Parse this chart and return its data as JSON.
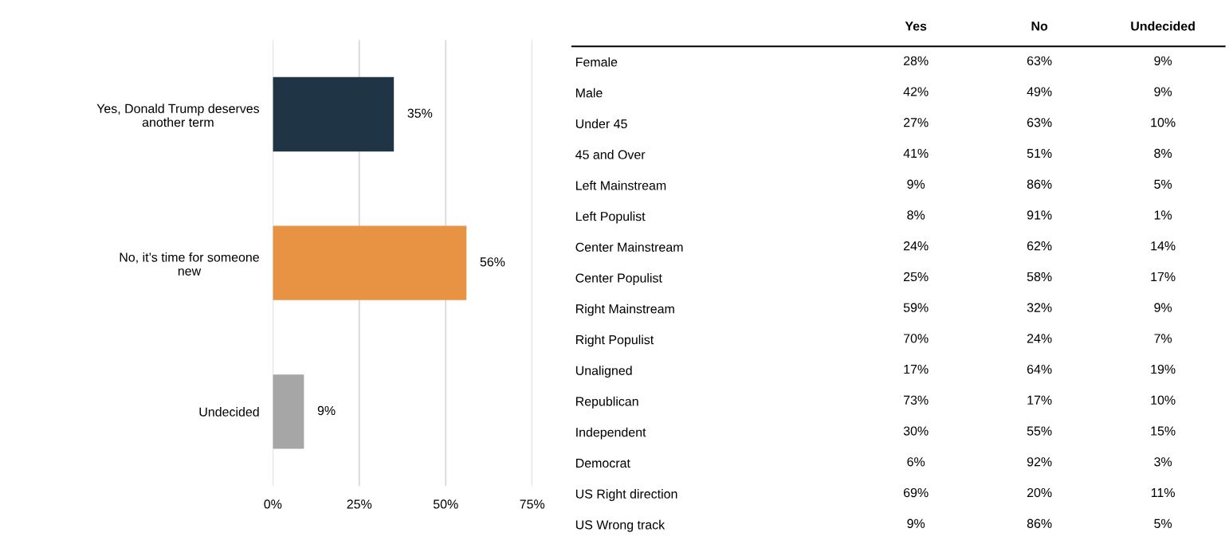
{
  "chart_data": [
    {
      "type": "bar",
      "orientation": "horizontal",
      "categories": [
        "Yes, Donald Trump deserves\nanother term",
        "No, it’s time for someone\nnew",
        "Undecided"
      ],
      "values": [
        35,
        56,
        9
      ],
      "colors": [
        "#1f3545",
        "#e89344",
        "#a6a6a6"
      ],
      "value_labels": [
        "35%",
        "56%",
        "9%"
      ],
      "xlim": [
        0,
        75
      ],
      "xticks": [
        {
          "value": 0,
          "label": "0%"
        },
        {
          "value": 25,
          "label": "25%"
        },
        {
          "value": 50,
          "label": "50%"
        },
        {
          "value": 75,
          "label": "75%"
        }
      ],
      "grid": "x"
    },
    {
      "type": "other",
      "categories": [
        "Yes",
        "No",
        "Undecided"
      ],
      "y_categories": [
        "Female",
        "Male",
        "Under 45",
        "45 and Over",
        "Left Mainstream",
        "Left Populist",
        "Center Mainstream",
        "Center Populist",
        "Right Mainstream",
        "Right Populist",
        "Unaligned",
        "Republican",
        "Independent",
        "Democrat",
        "US Right direction",
        "US Wrong track"
      ],
      "cell_labels": [
        [
          "28%",
          "63%",
          "9%"
        ],
        [
          "42%",
          "49%",
          "9%"
        ],
        [
          "27%",
          "63%",
          "10%"
        ],
        [
          "41%",
          "51%",
          "8%"
        ],
        [
          "9%",
          "86%",
          "5%"
        ],
        [
          "8%",
          "91%",
          "1%"
        ],
        [
          "24%",
          "62%",
          "14%"
        ],
        [
          "25%",
          "58%",
          "17%"
        ],
        [
          "59%",
          "32%",
          "9%"
        ],
        [
          "70%",
          "24%",
          "7%"
        ],
        [
          "17%",
          "64%",
          "19%"
        ],
        [
          "73%",
          "17%",
          "10%"
        ],
        [
          "30%",
          "55%",
          "15%"
        ],
        [
          "6%",
          "92%",
          "3%"
        ],
        [
          "69%",
          "20%",
          "11%"
        ],
        [
          "9%",
          "86%",
          "5%"
        ]
      ]
    }
  ]
}
